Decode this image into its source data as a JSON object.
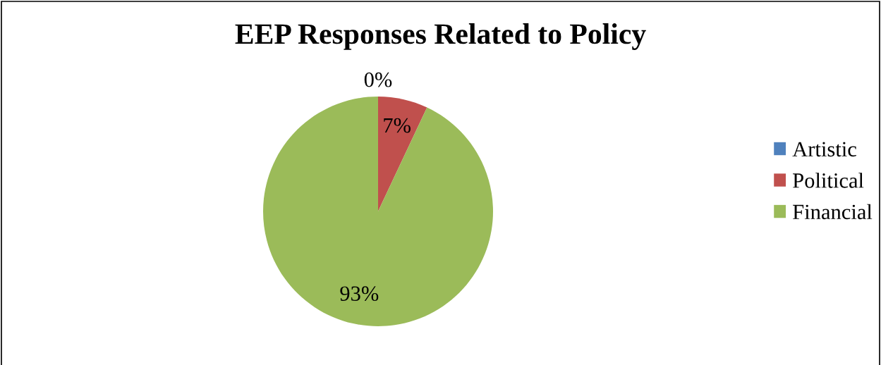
{
  "chart_data": {
    "type": "pie",
    "title": "EEP Responses Related to Policy",
    "categories": [
      "Artistic",
      "Political",
      "Financial"
    ],
    "values": [
      0,
      7,
      93
    ],
    "colors": [
      "#4f81bd",
      "#c0504d",
      "#9bbb59"
    ],
    "value_labels": [
      "0%",
      "7%",
      "93%"
    ],
    "legend": "right"
  }
}
